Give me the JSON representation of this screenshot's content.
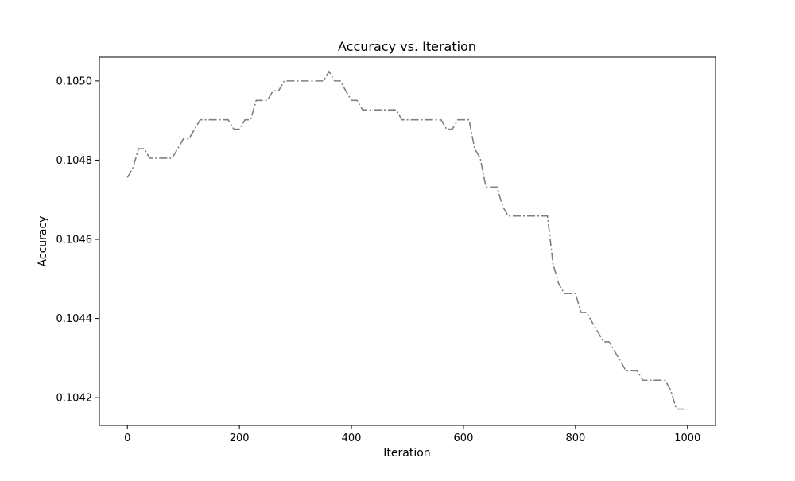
{
  "chart_data": {
    "type": "line",
    "title": "Accuracy vs. Iteration",
    "xlabel": "Iteration",
    "ylabel": "Accuracy",
    "xlim": [
      -50,
      1050
    ],
    "ylim": [
      0.10413,
      0.10506
    ],
    "xticks": [
      0,
      200,
      400,
      600,
      800,
      1000
    ],
    "xtick_labels": [
      "0",
      "200",
      "400",
      "600",
      "800",
      "1000"
    ],
    "yticks": [
      0.1042,
      0.1044,
      0.1046,
      0.1048,
      0.105
    ],
    "ytick_labels": [
      "0.1042",
      "0.1044",
      "0.1046",
      "0.1048",
      "0.1050"
    ],
    "grid": false,
    "legend": "none",
    "series": [
      {
        "color": "#808080",
        "line_style": "dashdot",
        "x": [
          0,
          10,
          20,
          30,
          40,
          50,
          60,
          70,
          80,
          90,
          100,
          110,
          120,
          130,
          140,
          150,
          160,
          170,
          180,
          190,
          200,
          210,
          220,
          230,
          240,
          250,
          260,
          270,
          280,
          290,
          300,
          310,
          320,
          330,
          340,
          350,
          360,
          370,
          380,
          390,
          400,
          410,
          420,
          430,
          440,
          450,
          460,
          470,
          480,
          490,
          500,
          510,
          520,
          530,
          540,
          550,
          560,
          570,
          580,
          590,
          600,
          610,
          620,
          630,
          640,
          650,
          660,
          670,
          680,
          690,
          700,
          710,
          720,
          730,
          740,
          750,
          760,
          770,
          780,
          790,
          800,
          810,
          820,
          830,
          840,
          850,
          860,
          870,
          880,
          890,
          900,
          910,
          920,
          930,
          940,
          950,
          960,
          970,
          980,
          990,
          1000
        ],
        "y": [
          0.104756,
          0.104781,
          0.104829,
          0.104829,
          0.104805,
          0.104805,
          0.104805,
          0.104805,
          0.104805,
          0.104829,
          0.104854,
          0.104854,
          0.104878,
          0.104902,
          0.104902,
          0.104902,
          0.104902,
          0.104902,
          0.104902,
          0.104878,
          0.104878,
          0.104902,
          0.104902,
          0.104951,
          0.104951,
          0.104951,
          0.104975,
          0.104975,
          0.105,
          0.105,
          0.105,
          0.105,
          0.105,
          0.105,
          0.105,
          0.105,
          0.105024,
          0.105,
          0.105,
          0.104975,
          0.104951,
          0.104951,
          0.104927,
          0.104927,
          0.104927,
          0.104927,
          0.104927,
          0.104927,
          0.104927,
          0.104902,
          0.104902,
          0.104902,
          0.104902,
          0.104902,
          0.104902,
          0.104902,
          0.104902,
          0.104878,
          0.104878,
          0.104902,
          0.104902,
          0.104902,
          0.104829,
          0.104805,
          0.104732,
          0.104732,
          0.104732,
          0.104683,
          0.104659,
          0.104659,
          0.104659,
          0.104659,
          0.104659,
          0.104659,
          0.104659,
          0.104659,
          0.104537,
          0.104488,
          0.104463,
          0.104463,
          0.104463,
          0.104415,
          0.104415,
          0.10439,
          0.104366,
          0.104341,
          0.104341,
          0.104317,
          0.104293,
          0.104268,
          0.104268,
          0.104268,
          0.104244,
          0.104244,
          0.104244,
          0.104244,
          0.104244,
          0.104219,
          0.104171,
          0.104171,
          0.104171
        ]
      }
    ]
  }
}
